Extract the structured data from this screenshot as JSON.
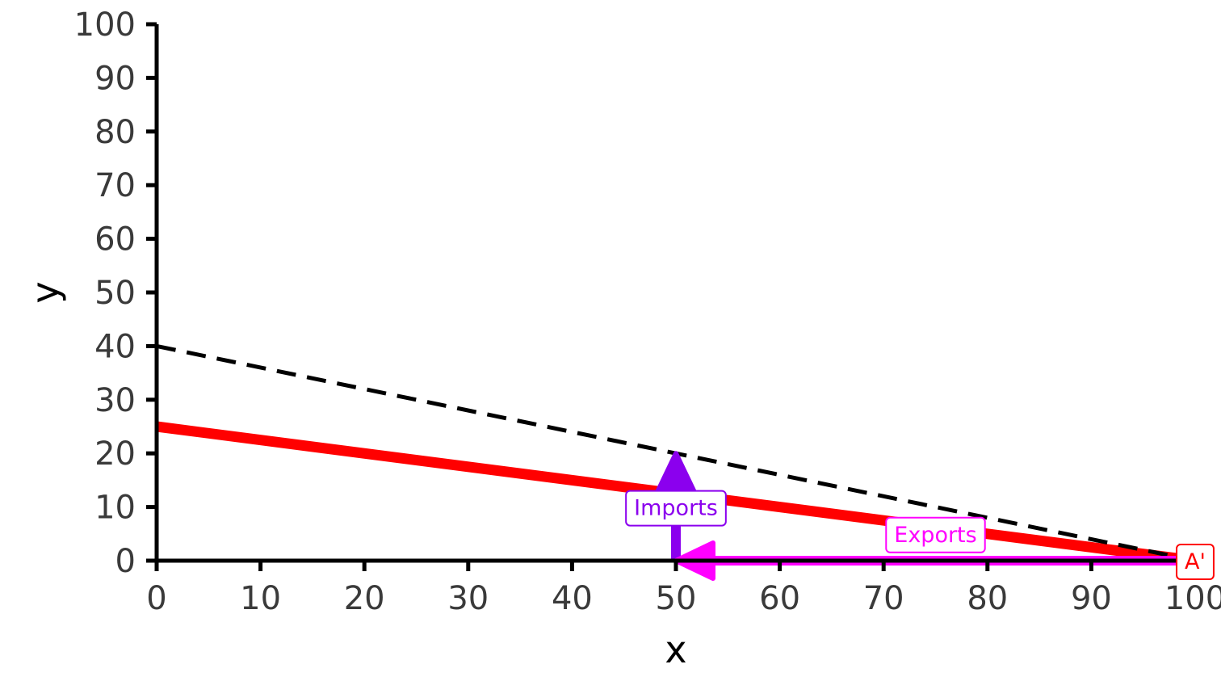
{
  "chart_data": {
    "type": "line",
    "xlabel": "x",
    "ylabel": "y",
    "xlim": [
      0,
      100
    ],
    "ylim": [
      0,
      100
    ],
    "x_ticks": [
      "0",
      "10",
      "20",
      "30",
      "40",
      "50",
      "60",
      "70",
      "80",
      "90",
      "100"
    ],
    "y_ticks": [
      "0",
      "10",
      "20",
      "30",
      "40",
      "50",
      "60",
      "70",
      "80",
      "90",
      "100"
    ],
    "grid": false,
    "series": [
      {
        "style": "solid",
        "color": "#ff0000",
        "x": [
          0,
          100
        ],
        "y": [
          25,
          0
        ]
      },
      {
        "style": "dashed",
        "color": "#000000",
        "x": [
          0,
          100
        ],
        "y": [
          40,
          0
        ]
      }
    ],
    "arrows": [
      {
        "label": "Imports",
        "color": "#8b00ee",
        "from": [
          50,
          0
        ],
        "to": [
          50,
          20
        ]
      },
      {
        "label": "Exports",
        "color": "#ff00ff",
        "from": [
          100,
          0
        ],
        "to": [
          50,
          0
        ]
      }
    ],
    "annotations": [
      {
        "label": "Imports",
        "color": "#8b00ee",
        "x": 50,
        "y": 10
      },
      {
        "label": "Exports",
        "color": "#ff00ff",
        "x": 75,
        "y": 5
      },
      {
        "label": "A'",
        "color": "#ff0000",
        "x": 100,
        "y": 0
      }
    ]
  }
}
